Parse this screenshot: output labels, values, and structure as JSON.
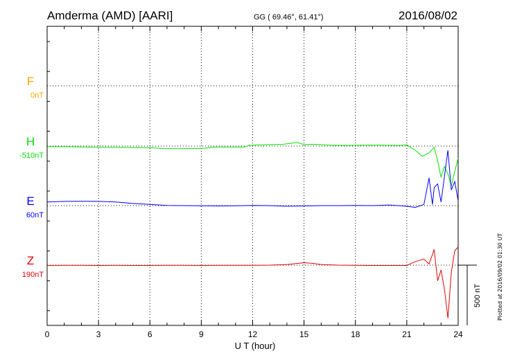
{
  "header": {
    "station": "Amderma (AMD)  [AARI]",
    "coords": "GG ( 69.46°,  61.41°)",
    "date": "2016/08/02"
  },
  "footer": {
    "plotted_note": "Plotted at 2016/09/02 01:30 UT",
    "scale_label": "500 nT"
  },
  "chart_data": {
    "type": "line",
    "xlabel": "U T (hour)",
    "xlim": [
      0,
      24
    ],
    "xticks": [
      "0",
      "3",
      "6",
      "9",
      "12",
      "15",
      "18",
      "21",
      "24"
    ],
    "scale_nT": 500,
    "grid": true,
    "series": [
      {
        "name": "F",
        "baseline_label": "0nT",
        "color": "#ffa500",
        "x": [],
        "values": []
      },
      {
        "name": "H",
        "baseline_label": "-510nT",
        "color": "#00e000",
        "x": [
          0,
          1,
          2,
          3,
          4,
          5,
          6,
          6.8,
          7.5,
          8.5,
          9.2,
          9.8,
          10.5,
          11.5,
          11.8,
          12.3,
          13,
          13.8,
          14.6,
          15,
          15.5,
          16.5,
          17.5,
          18.5,
          19.5,
          20.5,
          21,
          21.5,
          21.9,
          22.3,
          22.6,
          22.8,
          23,
          23.2,
          23.4,
          23.6,
          23.8,
          24
        ],
        "values": [
          -5,
          -5,
          -7,
          -10,
          -10,
          -12,
          -14,
          -20,
          -22,
          -20,
          -18,
          -8,
          -8,
          -8,
          5,
          10,
          12,
          15,
          30,
          12,
          15,
          8,
          5,
          8,
          8,
          5,
          10,
          -35,
          -85,
          -55,
          -10,
          -120,
          -260,
          -170,
          -230,
          -330,
          -210,
          -100
        ]
      },
      {
        "name": "E",
        "baseline_label": "60nT",
        "color": "#0000ff",
        "x": [
          0,
          1,
          2,
          3,
          4,
          5,
          6,
          7,
          8,
          9,
          10,
          11,
          12,
          13,
          14,
          15,
          16,
          17,
          18,
          19,
          20,
          21,
          21.5,
          22,
          22.3,
          22.5,
          22.6,
          22.8,
          23,
          23.2,
          23.4,
          23.6,
          23.8,
          24
        ],
        "values": [
          30,
          35,
          36,
          35,
          30,
          18,
          10,
          2,
          0,
          -2,
          -3,
          -2,
          2,
          0,
          -5,
          -3,
          0,
          0,
          2,
          0,
          5,
          -5,
          -15,
          10,
          230,
          10,
          150,
          180,
          30,
          240,
          460,
          130,
          200,
          40
        ]
      },
      {
        "name": "Z",
        "baseline_label": "190nT",
        "color": "#e00000",
        "x": [
          0,
          1,
          2,
          3,
          4,
          5,
          6,
          7,
          8,
          9,
          10,
          11,
          12,
          13,
          14,
          15,
          15.5,
          16,
          17,
          18,
          19,
          20,
          21,
          21.5,
          22,
          22.3,
          22.6,
          22.8,
          23,
          23.2,
          23.4,
          23.6,
          23.8,
          24
        ],
        "values": [
          -3,
          -2,
          -2,
          -3,
          -2,
          -3,
          -3,
          -2,
          -2,
          -3,
          -2,
          -2,
          -2,
          0,
          5,
          20,
          15,
          5,
          0,
          -2,
          -3,
          -3,
          -3,
          30,
          50,
          10,
          130,
          -130,
          -40,
          -200,
          -440,
          -60,
          120,
          150
        ]
      }
    ]
  }
}
